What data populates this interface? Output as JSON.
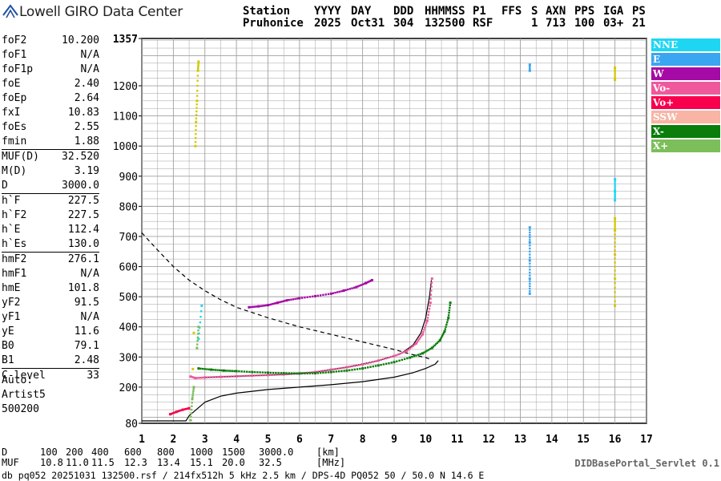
{
  "logo_text": "Lowell GIRO Data Center",
  "header": {
    "line1": [
      "Station",
      "YYYY",
      "DAY",
      "DDD",
      "HHMMSS",
      "P1",
      "FFS",
      "S",
      "AXN",
      "PPS",
      "IGA",
      "PS"
    ],
    "line2": [
      "Pruhonice",
      "2025",
      "Oct31",
      "304",
      "132500",
      "RSF",
      "1",
      "713",
      "100",
      "03+",
      "21"
    ]
  },
  "parameters": [
    {
      "name": "foF2",
      "value": "10.200"
    },
    {
      "name": "foF1",
      "value": "N/A"
    },
    {
      "name": "foF1p",
      "value": "N/A"
    },
    {
      "name": "foE",
      "value": "2.40"
    },
    {
      "name": "foEp",
      "value": "2.64"
    },
    {
      "name": "fxI",
      "value": "10.83"
    },
    {
      "name": "foEs",
      "value": "2.55"
    },
    {
      "name": "fmin",
      "value": "1.88"
    },
    {
      "name": "MUF(D)",
      "value": "32.520"
    },
    {
      "name": "M(D)",
      "value": "3.19"
    },
    {
      "name": "D",
      "value": "3000.0"
    },
    {
      "name": "h`F",
      "value": "227.5"
    },
    {
      "name": "h`F2",
      "value": "227.5"
    },
    {
      "name": "h`E",
      "value": "112.4"
    },
    {
      "name": "h`Es",
      "value": "130.0"
    },
    {
      "name": "hmF2",
      "value": "276.1"
    },
    {
      "name": "hmF1",
      "value": "N/A"
    },
    {
      "name": "hmE",
      "value": "101.8"
    },
    {
      "name": "yF2",
      "value": "91.5"
    },
    {
      "name": "yF1",
      "value": "N/A"
    },
    {
      "name": "yE",
      "value": "11.6"
    },
    {
      "name": "B0",
      "value": "79.1"
    },
    {
      "name": "B1",
      "value": "2.48"
    },
    {
      "name": "C-level",
      "value": "33"
    }
  ],
  "auto": {
    "line1": "Auto:",
    "line2": "Artist5",
    "line3": "500200"
  },
  "legend": [
    {
      "label": "NNE",
      "color": "#1fd6f2"
    },
    {
      "label": "E",
      "color": "#3aa5f0"
    },
    {
      "label": "W",
      "color": "#a60aa6"
    },
    {
      "label": "Vo-",
      "color": "#f0589c"
    },
    {
      "label": "Vo+",
      "color": "#f8004e"
    },
    {
      "label": "SSW",
      "color": "#f8b4a4"
    },
    {
      "label": "X-",
      "color": "#0a7d0a"
    },
    {
      "label": "X+",
      "color": "#7cbe5a"
    }
  ],
  "footer": {
    "d_row": [
      "D",
      "100",
      "200",
      "400",
      "600",
      "800",
      "1000",
      "1500",
      "3000.0",
      "[km]"
    ],
    "muf_row": [
      "MUF",
      "10.8",
      "11.0",
      "11.5",
      "12.3",
      "13.4",
      "15.1",
      "20.0",
      "32.5",
      "[MHz]"
    ],
    "file_line": "db pq052 20251031 132500.rsf / 214fx512h 5 kHz 2.5 km / DPS-4D PQ052 50 / 50.0 N 14.6 E",
    "servlet": "DIDBasePortal_Servlet 0.1"
  },
  "chart_data": {
    "type": "scatter",
    "title": "",
    "xlabel": "",
    "ylabel": "",
    "xlim": [
      1,
      17
    ],
    "ylim": [
      80,
      1357
    ],
    "x_ticks": [
      "1",
      "2",
      "3",
      "4",
      "5",
      "6",
      "7",
      "8",
      "9",
      "10",
      "11",
      "12",
      "13",
      "14",
      "15",
      "16",
      "17"
    ],
    "y_ticks": [
      "80",
      "200",
      "300",
      "400",
      "500",
      "600",
      "700",
      "800",
      "900",
      "1000",
      "1100",
      "1200",
      "1357"
    ],
    "grid": true,
    "series": [
      {
        "color": "#f0589c",
        "points": [
          [
            2.55,
            235
          ],
          [
            2.7,
            230
          ],
          [
            3.0,
            232
          ],
          [
            3.5,
            234
          ],
          [
            4.0,
            236
          ],
          [
            4.5,
            238
          ],
          [
            5.0,
            240
          ],
          [
            5.5,
            242
          ],
          [
            6.0,
            245
          ],
          [
            6.5,
            250
          ],
          [
            7.0,
            258
          ],
          [
            7.5,
            266
          ],
          [
            8.0,
            275
          ],
          [
            8.5,
            288
          ],
          [
            9.0,
            303
          ],
          [
            9.4,
            320
          ],
          [
            9.7,
            345
          ],
          [
            9.9,
            375
          ],
          [
            10.05,
            420
          ],
          [
            10.15,
            480
          ],
          [
            10.2,
            560
          ]
        ]
      },
      {
        "color": "#0a7d0a",
        "points": [
          [
            2.8,
            262
          ],
          [
            3.2,
            258
          ],
          [
            3.6,
            255
          ],
          [
            4.0,
            253
          ],
          [
            4.5,
            250
          ],
          [
            5.0,
            248
          ],
          [
            5.5,
            246
          ],
          [
            6.0,
            245
          ],
          [
            6.5,
            246
          ],
          [
            7.0,
            250
          ],
          [
            7.5,
            255
          ],
          [
            8.0,
            262
          ],
          [
            8.5,
            272
          ],
          [
            9.0,
            283
          ],
          [
            9.5,
            298
          ],
          [
            9.9,
            312
          ],
          [
            10.2,
            330
          ],
          [
            10.45,
            355
          ],
          [
            10.6,
            385
          ],
          [
            10.72,
            430
          ],
          [
            10.78,
            480
          ]
        ]
      },
      {
        "color": "#a60aa6",
        "points": [
          [
            4.4,
            465
          ],
          [
            4.7,
            468
          ],
          [
            5.0,
            472
          ],
          [
            5.3,
            480
          ],
          [
            5.6,
            488
          ],
          [
            6.0,
            495
          ],
          [
            6.5,
            502
          ],
          [
            7.0,
            510
          ],
          [
            7.4,
            520
          ],
          [
            7.8,
            532
          ],
          [
            8.1,
            545
          ],
          [
            8.3,
            555
          ]
        ]
      },
      {
        "color": "#f8004e",
        "points": [
          [
            1.9,
            110
          ],
          [
            2.1,
            118
          ],
          [
            2.3,
            125
          ],
          [
            2.5,
            130
          ]
        ]
      },
      {
        "color": "#d6c800",
        "points": [
          [
            2.62,
            260
          ],
          [
            2.65,
            380
          ],
          [
            2.7,
            1000
          ],
          [
            2.72,
            1080
          ],
          [
            2.75,
            1150
          ],
          [
            2.78,
            1250
          ],
          [
            2.8,
            1280
          ],
          [
            16.0,
            470
          ],
          [
            16.0,
            560
          ],
          [
            16.0,
            640
          ],
          [
            16.0,
            720
          ],
          [
            16.0,
            760
          ],
          [
            16.0,
            1220
          ],
          [
            16.0,
            1260
          ]
        ]
      },
      {
        "color": "#3aa5f0",
        "points": [
          [
            13.3,
            510
          ],
          [
            13.3,
            560
          ],
          [
            13.3,
            620
          ],
          [
            13.3,
            680
          ],
          [
            13.3,
            730
          ],
          [
            13.3,
            1250
          ],
          [
            13.3,
            1270
          ]
        ]
      },
      {
        "color": "#1fd6f2",
        "points": [
          [
            2.8,
            360
          ],
          [
            2.9,
            470
          ],
          [
            16.0,
            820
          ],
          [
            16.0,
            850
          ],
          [
            16.0,
            890
          ]
        ]
      },
      {
        "color": "#7cbe5a",
        "points": [
          [
            2.55,
            90
          ],
          [
            2.6,
            160
          ],
          [
            2.65,
            200
          ],
          [
            2.75,
            330
          ],
          [
            2.8,
            400
          ]
        ]
      }
    ],
    "lines": [
      {
        "style": "dashed",
        "points": [
          [
            1.0,
            712
          ],
          [
            1.5,
            655
          ],
          [
            2.0,
            600
          ],
          [
            2.5,
            555
          ],
          [
            3.0,
            520
          ],
          [
            3.5,
            490
          ],
          [
            4.0,
            465
          ],
          [
            5.0,
            430
          ],
          [
            6.0,
            400
          ],
          [
            7.0,
            375
          ],
          [
            8.0,
            350
          ],
          [
            9.0,
            325
          ],
          [
            9.5,
            310
          ],
          [
            10.0,
            298
          ],
          [
            10.2,
            290
          ]
        ]
      },
      {
        "style": "solid",
        "points": [
          [
            1.0,
            88
          ],
          [
            2.4,
            88
          ],
          [
            2.5,
            105
          ],
          [
            3.0,
            150
          ],
          [
            3.5,
            170
          ],
          [
            4.0,
            180
          ],
          [
            5.0,
            192
          ],
          [
            6.0,
            200
          ],
          [
            7.0,
            208
          ],
          [
            8.0,
            218
          ],
          [
            9.0,
            233
          ],
          [
            9.6,
            248
          ],
          [
            10.0,
            262
          ],
          [
            10.3,
            276
          ],
          [
            10.4,
            288
          ]
        ]
      },
      {
        "style": "solid",
        "points": [
          [
            2.75,
            230
          ],
          [
            2.85,
            232
          ],
          [
            3.5,
            234
          ],
          [
            4.5,
            238
          ],
          [
            5.5,
            242
          ],
          [
            6.5,
            250
          ],
          [
            7.5,
            266
          ],
          [
            8.5,
            288
          ],
          [
            9.2,
            310
          ],
          [
            9.6,
            340
          ],
          [
            9.85,
            380
          ],
          [
            10.0,
            430
          ],
          [
            10.12,
            500
          ],
          [
            10.18,
            555
          ]
        ]
      }
    ]
  }
}
